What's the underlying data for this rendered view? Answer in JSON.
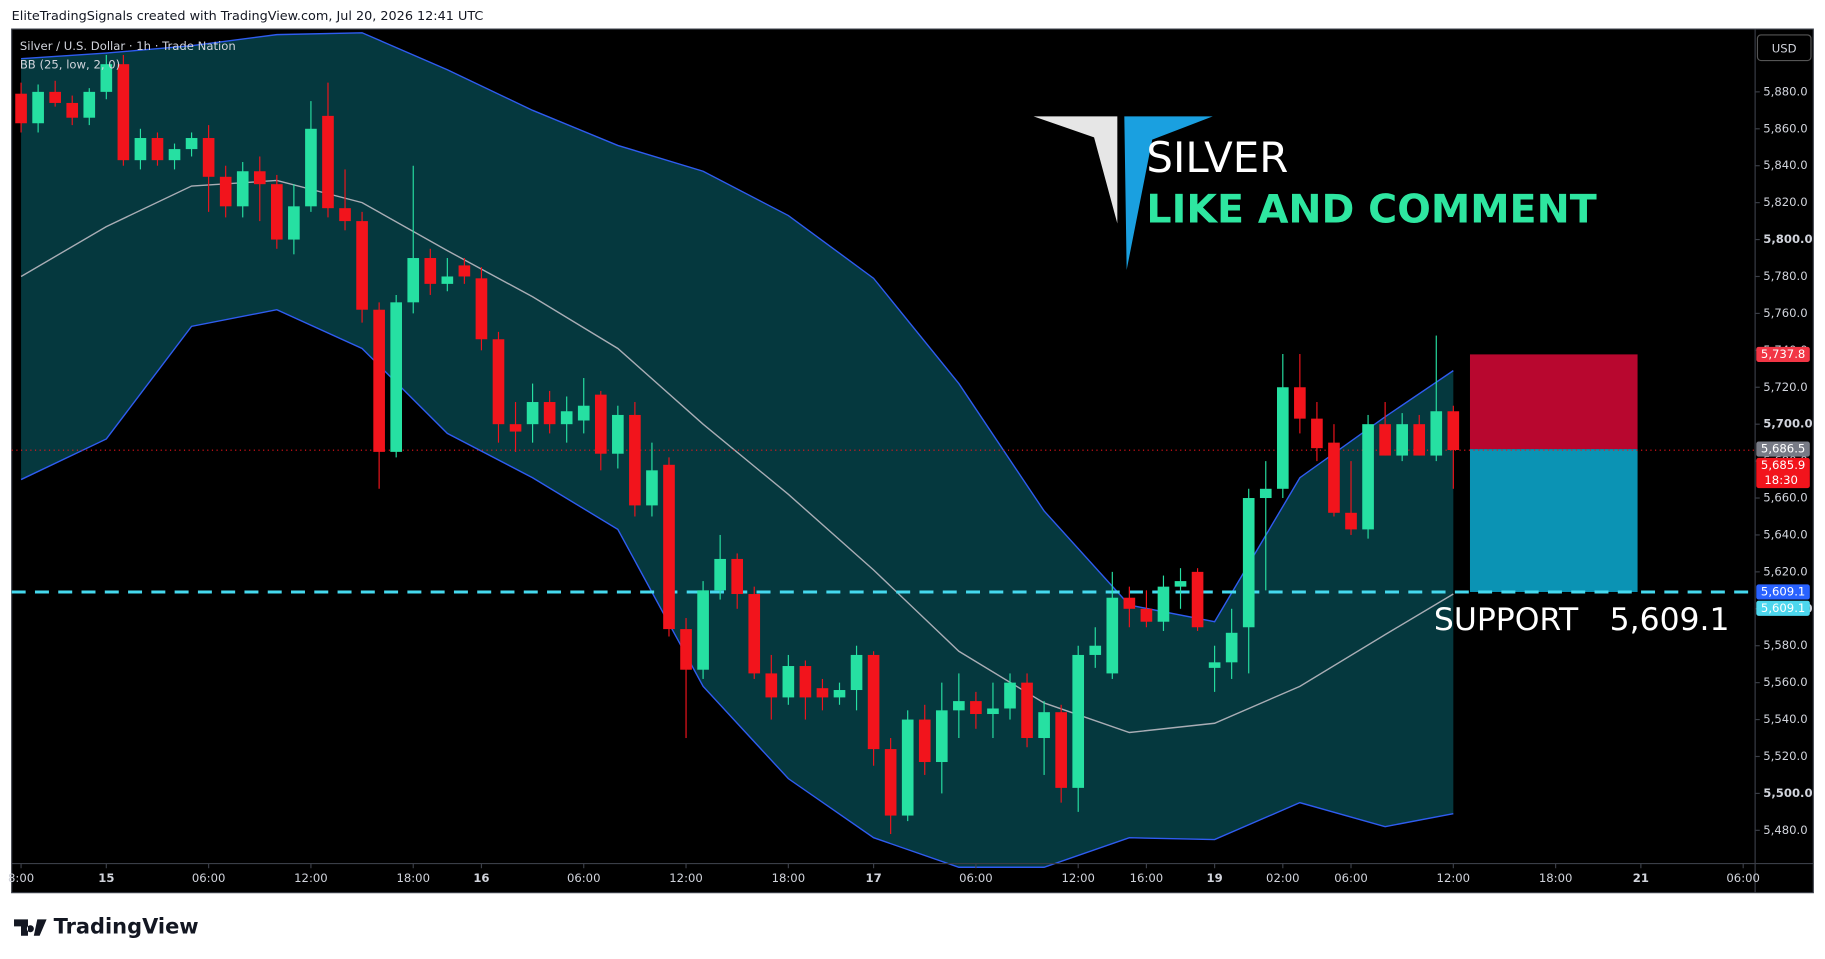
{
  "header": {
    "credit": "EliteTradingSignals created with TradingView.com, Jul 20, 2026 12:41 UTC"
  },
  "footer": {
    "brand": "TradingView"
  },
  "chart_data": {
    "type": "candlestick",
    "symbol": "Silver / U.S. Dollar · 1h · Trade Nation",
    "indicator": "BB (25, low, 2, 0)",
    "currency": "USD",
    "up_color": "#26e0a2",
    "down_color": "#f2141c",
    "open": [
      5879,
      5863,
      5880,
      5874,
      5866,
      5880,
      5895,
      5843,
      5855,
      5843,
      5849,
      5855,
      5834,
      5818,
      5837,
      5830,
      5800,
      5818,
      5867,
      5817,
      5810,
      5762,
      5685,
      5766,
      5790,
      5776,
      5786,
      5779,
      5746,
      5700,
      5700,
      5712,
      5700,
      5702,
      5716,
      5684,
      5705,
      5656,
      5678,
      5589,
      5567,
      5610,
      5627,
      5608,
      5565,
      5552,
      5569,
      5557,
      5552,
      5556,
      5575,
      5524,
      5488,
      5540,
      5517,
      5545,
      5550,
      5543,
      5546,
      5560,
      5530,
      5544,
      5503,
      5575,
      5565,
      5606,
      5600,
      5593,
      5612,
      5620,
      5568,
      5571,
      5590,
      5660,
      5665,
      5720,
      5703,
      5690,
      5652,
      5643,
      5700,
      5683,
      5700,
      5683,
      5707
    ],
    "high": [
      5885,
      5884,
      5886,
      5878,
      5882,
      5900,
      5900,
      5860,
      5858,
      5852,
      5858,
      5862,
      5840,
      5842,
      5845,
      5835,
      5830,
      5875,
      5885,
      5838,
      5815,
      5766,
      5770,
      5840,
      5795,
      5790,
      5790,
      5785,
      5750,
      5712,
      5722,
      5718,
      5715,
      5725,
      5718,
      5710,
      5712,
      5690,
      5682,
      5595,
      5615,
      5640,
      5630,
      5612,
      5575,
      5575,
      5572,
      5562,
      5560,
      5580,
      5577,
      5530,
      5545,
      5548,
      5560,
      5565,
      5555,
      5560,
      5565,
      5565,
      5550,
      5548,
      5580,
      5590,
      5620,
      5612,
      5610,
      5618,
      5622,
      5622,
      5580,
      5600,
      5665,
      5680,
      5738,
      5738,
      5712,
      5700,
      5680,
      5705,
      5712,
      5706,
      5705,
      5748,
      5710
    ],
    "low": [
      5858,
      5858,
      5872,
      5862,
      5862,
      5876,
      5840,
      5838,
      5840,
      5838,
      5845,
      5815,
      5812,
      5812,
      5810,
      5795,
      5792,
      5815,
      5812,
      5805,
      5755,
      5665,
      5682,
      5760,
      5770,
      5772,
      5776,
      5740,
      5690,
      5685,
      5690,
      5695,
      5690,
      5695,
      5675,
      5676,
      5650,
      5650,
      5585,
      5530,
      5562,
      5605,
      5600,
      5562,
      5540,
      5548,
      5540,
      5545,
      5548,
      5545,
      5515,
      5478,
      5485,
      5510,
      5500,
      5530,
      5535,
      5530,
      5540,
      5525,
      5510,
      5495,
      5490,
      5568,
      5562,
      5590,
      5590,
      5588,
      5600,
      5588,
      5555,
      5562,
      5565,
      5610,
      5660,
      5695,
      5680,
      5650,
      5640,
      5638,
      5683,
      5680,
      5683,
      5680,
      5665
    ],
    "close": [
      5863,
      5880,
      5874,
      5866,
      5880,
      5895,
      5843,
      5855,
      5843,
      5849,
      5855,
      5834,
      5818,
      5837,
      5830,
      5800,
      5818,
      5860,
      5817,
      5810,
      5762,
      5685,
      5766,
      5790,
      5776,
      5780,
      5780,
      5746,
      5700,
      5696,
      5712,
      5700,
      5707,
      5710,
      5684,
      5705,
      5656,
      5675,
      5589,
      5567,
      5610,
      5627,
      5608,
      5565,
      5552,
      5569,
      5552,
      5552,
      5556,
      5575,
      5524,
      5488,
      5540,
      5517,
      5545,
      5550,
      5543,
      5546,
      5560,
      5530,
      5544,
      5503,
      5575,
      5580,
      5606,
      5600,
      5593,
      5612,
      5615,
      5590,
      5571,
      5587,
      5660,
      5665,
      5720,
      5703,
      5687,
      5652,
      5643,
      5700,
      5683,
      5700,
      5683,
      5707,
      5686
    ],
    "bb": {
      "x": [
        0,
        5,
        10,
        15,
        20,
        25,
        30,
        35,
        40,
        45,
        50,
        55,
        60,
        65,
        70,
        75,
        80,
        84
      ],
      "upper": [
        5898,
        5901,
        5905,
        5911,
        5912,
        5892,
        5870,
        5851,
        5837,
        5813,
        5779,
        5722,
        5653,
        5602,
        5593,
        5671,
        5704,
        5729
      ],
      "middle": [
        5780,
        5807,
        5829,
        5832,
        5820,
        5794,
        5769,
        5741,
        5700,
        5662,
        5621,
        5577,
        5549,
        5533,
        5538,
        5558,
        5586,
        5608
      ],
      "lower": [
        5670,
        5692,
        5753,
        5762,
        5741,
        5695,
        5671,
        5643,
        5558,
        5508,
        5476,
        5460,
        5460,
        5476,
        5475,
        5495,
        5482,
        5489
      ],
      "colors": {
        "band": "#05383e",
        "upper": "#2f5cf0",
        "middle": "#a9adb5",
        "lower": "#2f5cf0"
      }
    },
    "xlim": [
      -0.55,
      101.7
    ],
    "ylim": [
      5462,
      5914
    ],
    "xticks": [
      {
        "value": 0,
        "label": "8:00"
      },
      {
        "value": 5,
        "label": "15"
      },
      {
        "value": 11,
        "label": "06:00"
      },
      {
        "value": 17,
        "label": "12:00"
      },
      {
        "value": 23,
        "label": "18:00"
      },
      {
        "value": 27,
        "label": "16"
      },
      {
        "value": 33,
        "label": "06:00"
      },
      {
        "value": 39,
        "label": "12:00"
      },
      {
        "value": 45,
        "label": "18:00"
      },
      {
        "value": 50,
        "label": "17"
      },
      {
        "value": 56,
        "label": "06:00"
      },
      {
        "value": 62,
        "label": "12:00"
      },
      {
        "value": 66,
        "label": "16:00"
      },
      {
        "value": 70,
        "label": "19"
      },
      {
        "value": 74,
        "label": "02:00"
      },
      {
        "value": 78,
        "label": "06:00"
      },
      {
        "value": 84,
        "label": "12:00"
      },
      {
        "value": 90,
        "label": "18:00"
      },
      {
        "value": 95,
        "label": "21"
      },
      {
        "value": 101,
        "label": "06:00"
      }
    ],
    "yticks": [
      {
        "value": 5480,
        "label": "5,480.0"
      },
      {
        "value": 5500,
        "label": "5,500.0"
      },
      {
        "value": 5520,
        "label": "5,520.0"
      },
      {
        "value": 5540,
        "label": "5,540.0"
      },
      {
        "value": 5560,
        "label": "5,560.0"
      },
      {
        "value": 5580,
        "label": "5,580.0"
      },
      {
        "value": 5600,
        "label": "5,600.0"
      },
      {
        "value": 5620,
        "label": "5,620.0"
      },
      {
        "value": 5640,
        "label": "5,640.0"
      },
      {
        "value": 5660,
        "label": "5,660.0"
      },
      {
        "value": 5680,
        "label": "5,680.0"
      },
      {
        "value": 5700,
        "label": "5,700.0"
      },
      {
        "value": 5720,
        "label": "5,720.0"
      },
      {
        "value": 5740,
        "label": "5,740.0"
      },
      {
        "value": 5760,
        "label": "5,760.0"
      },
      {
        "value": 5780,
        "label": "5,780.0"
      },
      {
        "value": 5800,
        "label": "5,800.0"
      },
      {
        "value": 5820,
        "label": "5,820.0"
      },
      {
        "value": 5840,
        "label": "5,840.0"
      },
      {
        "value": 5860,
        "label": "5,860.0"
      },
      {
        "value": 5880,
        "label": "5,880.0"
      }
    ],
    "price_tags": [
      {
        "value": 5737.8,
        "label": "5,737.8",
        "color": "#f23645"
      },
      {
        "value": 5686.5,
        "label": "5,686.5",
        "color": "#787b86"
      },
      {
        "value": 5685.9,
        "label": "5,685.9",
        "color": "#f2141c",
        "sub": "18:30"
      },
      {
        "value": 5609.1,
        "label": "5,609.1",
        "color": "#2962ff"
      },
      {
        "value": 5609.1,
        "label": "5,609.1",
        "color": "#4dd7ee"
      }
    ],
    "position": {
      "stop": 5737.8,
      "entry": 5686.5,
      "target": 5609.1,
      "stop_color": "#b8072f",
      "target_color": "#0b93b4"
    },
    "support": {
      "label": "SUPPORT",
      "value": 5609.1,
      "value_label": "5,609.1",
      "color": "#45d9ee"
    },
    "annotations": {
      "title": "SILVER",
      "cta": "LIKE AND COMMENT"
    }
  }
}
